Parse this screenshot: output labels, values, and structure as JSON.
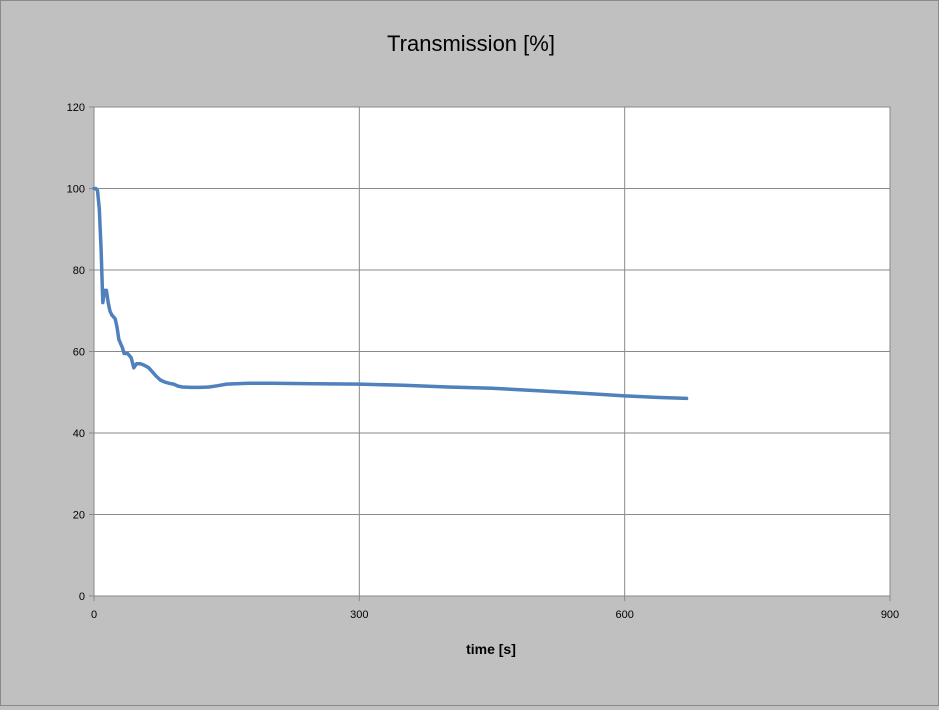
{
  "chart_data": {
    "type": "line",
    "title": "Transmission [%]",
    "xlabel": "time [s]",
    "ylabel": "",
    "xlim": [
      0,
      900
    ],
    "ylim": [
      0,
      120
    ],
    "x_ticks": [
      0,
      300,
      600,
      900
    ],
    "y_ticks": [
      0,
      20,
      40,
      60,
      80,
      100,
      120
    ],
    "grid": true,
    "legend": "none",
    "series": [
      {
        "color": "#4f81bd",
        "x": [
          0,
          2,
          4,
          6,
          8,
          10,
          12,
          14,
          16,
          18,
          20,
          22,
          24,
          26,
          28,
          30,
          32,
          34,
          36,
          38,
          40,
          42,
          45,
          48,
          50,
          52,
          55,
          58,
          62,
          66,
          70,
          75,
          80,
          85,
          90,
          95,
          100,
          110,
          120,
          130,
          140,
          150,
          175,
          200,
          250,
          300,
          350,
          400,
          450,
          500,
          550,
          600,
          640,
          670
        ],
        "y": [
          100,
          100,
          99.5,
          95,
          85,
          72,
          75,
          75,
          72,
          70,
          69,
          68.5,
          68,
          66,
          63,
          62,
          61,
          59.5,
          59.5,
          59.5,
          59,
          58.5,
          56,
          57,
          57,
          57,
          56.8,
          56.5,
          56,
          55,
          54,
          53,
          52.5,
          52.2,
          52,
          51.5,
          51.3,
          51.2,
          51.2,
          51.3,
          51.6,
          52,
          52.2,
          52.2,
          52.1,
          52,
          51.7,
          51.3,
          51,
          50.4,
          49.8,
          49.1,
          48.7,
          48.5
        ]
      }
    ]
  }
}
